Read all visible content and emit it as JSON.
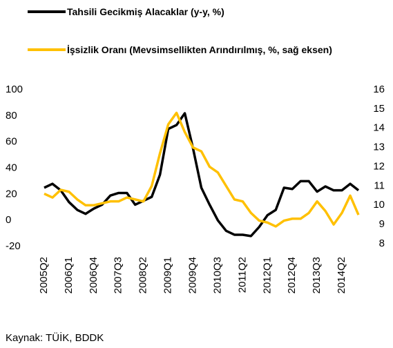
{
  "chart_data": {
    "type": "line",
    "categories": [
      "2005Q2",
      null,
      null,
      "2006Q1",
      null,
      null,
      "2006Q4",
      null,
      null,
      "2007Q3",
      null,
      null,
      "2008Q2",
      null,
      null,
      "2009Q1",
      null,
      null,
      "2009Q4",
      null,
      null,
      "2010Q3",
      null,
      null,
      "2011Q2",
      null,
      null,
      "2012Q1",
      null,
      null,
      "2012Q4",
      null,
      null,
      "2013Q3",
      null,
      null,
      "2014Q2",
      null,
      null
    ],
    "series": [
      {
        "name": "Tahsili Gecikmiş Alacaklar (y-y, %)",
        "color": "#000000",
        "values": [
          25,
          28,
          23,
          14,
          8,
          5,
          9,
          12,
          19,
          21,
          21,
          12,
          15,
          18,
          35,
          70,
          73,
          82,
          55,
          25,
          12,
          0,
          -8,
          -11,
          -11,
          -12,
          -5,
          4,
          8,
          25,
          24,
          30,
          30,
          22,
          26,
          23,
          23,
          28,
          23
        ]
      },
      {
        "name": "İşsizlik Oranı (Mevsimsellikten Arındırılmış, %, sağ eksen)",
        "color": "#ffc000",
        "axis": "y2",
        "values": [
          10.6,
          10.4,
          10.8,
          10.7,
          10.3,
          10.0,
          10.0,
          10.1,
          10.2,
          10.2,
          10.4,
          10.3,
          10.2,
          11.0,
          12.7,
          14.2,
          14.8,
          13.8,
          13.0,
          12.8,
          12.0,
          11.7,
          11.0,
          10.3,
          10.2,
          9.6,
          9.2,
          9.1,
          8.9,
          9.2,
          9.3,
          9.3,
          9.6,
          10.2,
          9.7,
          9.0,
          9.6,
          10.5,
          9.5
        ]
      }
    ],
    "ylim": [
      -20,
      100
    ],
    "yticks": [
      -20,
      0,
      20,
      40,
      60,
      80,
      100
    ],
    "y2lim": [
      8,
      16
    ],
    "y2ticks": [
      8,
      9,
      10,
      11,
      12,
      13,
      14,
      15,
      16
    ],
    "source": "Kaynak: TÜİK, BDDK"
  }
}
